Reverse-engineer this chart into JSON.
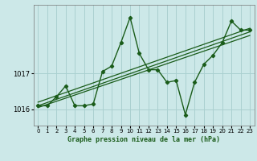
{
  "title": "Graphe pression niveau de la mer (hPa)",
  "bg_color": "#cce8e8",
  "grid_color": "#aad0d0",
  "line_color": "#1a5c1a",
  "xlim": [
    -0.5,
    23.5
  ],
  "ylim": [
    1015.55,
    1018.9
  ],
  "yticks": [
    1016,
    1017
  ],
  "xticks": [
    0,
    1,
    2,
    3,
    4,
    5,
    6,
    7,
    8,
    9,
    10,
    11,
    12,
    13,
    14,
    15,
    16,
    17,
    18,
    19,
    20,
    21,
    22,
    23
  ],
  "hours": [
    0,
    1,
    2,
    3,
    4,
    5,
    6,
    7,
    8,
    9,
    10,
    11,
    12,
    13,
    14,
    15,
    16,
    17,
    18,
    19,
    20,
    21,
    22,
    23
  ],
  "pressure": [
    1016.1,
    1016.1,
    1016.35,
    1016.65,
    1016.1,
    1016.1,
    1016.15,
    1017.05,
    1017.2,
    1017.85,
    1018.55,
    1017.55,
    1017.1,
    1017.1,
    1016.75,
    1016.8,
    1015.85,
    1016.75,
    1017.25,
    1017.5,
    1017.85,
    1018.45,
    1018.2,
    1018.2
  ],
  "trend1_x": [
    0,
    23
  ],
  "trend1_y": [
    1016.05,
    1018.05
  ],
  "trend2_x": [
    0,
    23
  ],
  "trend2_y": [
    1016.1,
    1018.15
  ],
  "trend3_x": [
    0,
    23
  ],
  "trend3_y": [
    1016.2,
    1018.25
  ]
}
